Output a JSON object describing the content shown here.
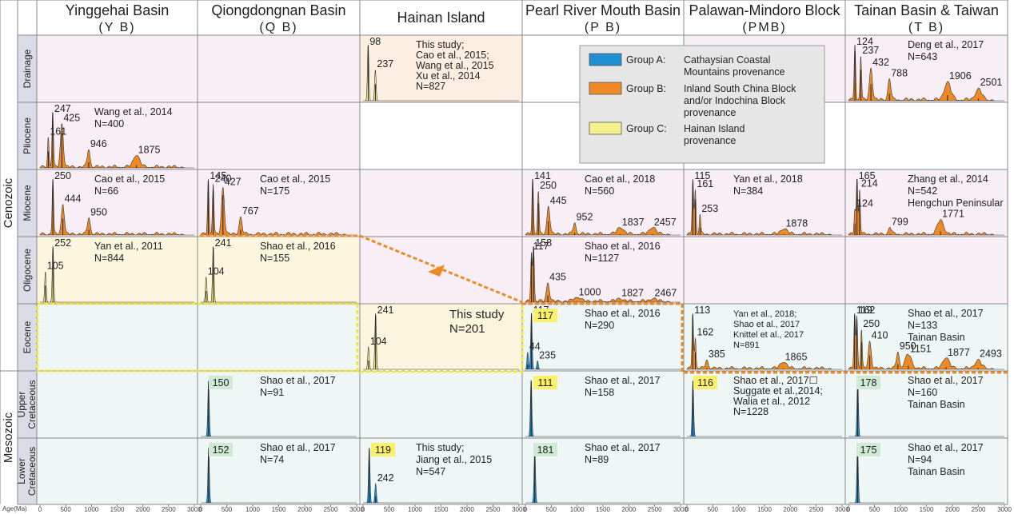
{
  "columns": [
    {
      "id": "YB",
      "title": "Yinggehai Basin",
      "sub": "(Y B)"
    },
    {
      "id": "QB",
      "title": "Qiongdongnan Basin",
      "sub": "(Q B)"
    },
    {
      "id": "HI",
      "title": "Hainan Island",
      "sub": ""
    },
    {
      "id": "PB",
      "title": "Pearl River Mouth Basin",
      "sub": "(P B)"
    },
    {
      "id": "PMB",
      "title": "Palawan-Mindoro Block",
      "sub": "(PMB)"
    },
    {
      "id": "TB",
      "title": "Tainan Basin & Taiwan",
      "sub": "(T B)"
    }
  ],
  "rows": [
    {
      "id": "drainage",
      "label": "Drainage",
      "era": "cenozoic"
    },
    {
      "id": "pliocene",
      "label": "Pliocene",
      "era": "cenozoic"
    },
    {
      "id": "miocene",
      "label": "Miocene",
      "era": "cenozoic"
    },
    {
      "id": "oligocene",
      "label": "Oligocene",
      "era": "cenozoic"
    },
    {
      "id": "eocene",
      "label": "Eocene",
      "era": "cenozoic"
    },
    {
      "id": "upper_cretaceous",
      "label": [
        "Upper",
        "Cretaceous"
      ],
      "era": "mesozoic"
    },
    {
      "id": "lower_cretaceous",
      "label": [
        "Lower",
        "Cretaceous"
      ],
      "era": "mesozoic"
    }
  ],
  "eras": [
    {
      "id": "cenozoic",
      "label": "Cenozoic"
    },
    {
      "id": "mesozoic",
      "label": "Mesozoic"
    }
  ],
  "colors": {
    "group_a": "#1f8fd2",
    "group_b": "#ee8a25",
    "group_c": "#f6f08c",
    "bg_pink": "#f8eef6",
    "bg_yellow": "#fdf6de",
    "bg_blue": "#eef6f6",
    "bg_peach": "#fcefe2",
    "highlight_yellow": "#fbf06a",
    "highlight_green": "#cfe9d4",
    "dash_orange": "#ee8a25",
    "dash_yellow": "#f2e83a"
  },
  "legend": {
    "items": [
      {
        "group": "A",
        "label": "Group A:",
        "text": [
          "Cathaysian Coastal",
          "Mountains provenance"
        ],
        "color": "#1f8fd2"
      },
      {
        "group": "B",
        "label": "Group B:",
        "text": [
          "Inland South China Block",
          "and/or Indochina Block",
          "provenance"
        ],
        "color": "#ee8a25"
      },
      {
        "group": "C",
        "label": "Group C:",
        "text": [
          "Hainan Island",
          "provenance"
        ],
        "color": "#f6f08c"
      }
    ]
  },
  "axis": {
    "label": "Age(Ma)",
    "ticks": [
      "0",
      "500",
      "1000",
      "1500",
      "2000",
      "2500",
      "3000"
    ]
  },
  "chart_data": {
    "type": "area",
    "xlabel": "Age(Ma)",
    "xlim": [
      0,
      3000
    ],
    "panels": [
      {
        "col": "HI",
        "row": "drainage",
        "group": "C",
        "peaks": [
          {
            "x": 98,
            "h": 1.0
          },
          {
            "x": 237,
            "h": 0.55
          }
        ],
        "peak_labels": [
          "98",
          "237"
        ],
        "ref": [
          "This study;",
          "Cao et al., 2015;",
          "Wang et al., 2015",
          "Xu et al., 2014",
          "N=827"
        ]
      },
      {
        "col": "TB",
        "row": "drainage",
        "group": "B",
        "peaks": [
          {
            "x": 124,
            "h": 0.95
          },
          {
            "x": 237,
            "h": 0.75
          },
          {
            "x": 432,
            "h": 0.55
          },
          {
            "x": 788,
            "h": 0.35
          },
          {
            "x": 1906,
            "h": 0.3
          },
          {
            "x": 2501,
            "h": 0.18
          }
        ],
        "peak_labels": [
          "124",
          "237",
          "432",
          "788",
          "1906",
          "2501"
        ],
        "ref": [
          "Deng et al., 2017",
          "N=643"
        ]
      },
      {
        "col": "YB",
        "row": "pliocene",
        "group": "B",
        "peaks": [
          {
            "x": 161,
            "h": 0.55
          },
          {
            "x": 247,
            "h": 1.0
          },
          {
            "x": 425,
            "h": 0.8
          },
          {
            "x": 946,
            "h": 0.32
          },
          {
            "x": 1875,
            "h": 0.22
          }
        ],
        "peak_labels": [
          "161",
          "247",
          "425",
          "946",
          "1875"
        ],
        "ref": [
          "Wang et al., 2014",
          "N=400"
        ]
      },
      {
        "col": "YB",
        "row": "miocene",
        "group": "B",
        "peaks": [
          {
            "x": 250,
            "h": 1.0
          },
          {
            "x": 444,
            "h": 0.55
          },
          {
            "x": 950,
            "h": 0.3
          }
        ],
        "peak_labels": [
          "250",
          "444",
          "950"
        ],
        "ref": [
          "Cao et al., 2015",
          "N=66"
        ]
      },
      {
        "col": "QB",
        "row": "miocene",
        "group": "B",
        "peaks": [
          {
            "x": 145,
            "h": 1.0
          },
          {
            "x": 240,
            "h": 0.9
          },
          {
            "x": 427,
            "h": 0.85
          },
          {
            "x": 767,
            "h": 0.3
          }
        ],
        "peak_labels": [
          "145",
          "240",
          "427",
          "767"
        ],
        "ref": [
          "Cao et al., 2015",
          "N=175"
        ]
      },
      {
        "col": "PB",
        "row": "miocene",
        "group": "B",
        "peaks": [
          {
            "x": 141,
            "h": 1.0
          },
          {
            "x": 250,
            "h": 0.75
          },
          {
            "x": 445,
            "h": 0.5
          },
          {
            "x": 952,
            "h": 0.2
          },
          {
            "x": 1837,
            "h": 0.12
          },
          {
            "x": 2457,
            "h": 0.12
          }
        ],
        "peak_labels": [
          "141",
          "250",
          "445",
          "952",
          "1837",
          "2457"
        ],
        "ref": [
          "Cao et al., 2018",
          "N=560"
        ]
      },
      {
        "col": "PMB",
        "row": "miocene",
        "group": "B",
        "peaks": [
          {
            "x": 115,
            "h": 1.0
          },
          {
            "x": 161,
            "h": 0.8
          },
          {
            "x": 253,
            "h": 0.35
          },
          {
            "x": 1878,
            "h": 0.1
          }
        ],
        "peak_labels": [
          "115",
          "161",
          "253",
          "1878"
        ],
        "ref": [
          "Yan et al., 2018",
          "N=384"
        ]
      },
      {
        "col": "TB",
        "row": "miocene",
        "group": "B",
        "peaks": [
          {
            "x": 124,
            "h": 0.45
          },
          {
            "x": 165,
            "h": 1.0
          },
          {
            "x": 214,
            "h": 0.8
          },
          {
            "x": 799,
            "h": 0.12
          },
          {
            "x": 1771,
            "h": 0.25
          }
        ],
        "peak_labels": [
          "124",
          "165",
          "214",
          "799",
          "1771"
        ],
        "ref": [
          "Zhang et al., 2014",
          "N=542",
          "Hengchun Peninsular"
        ]
      },
      {
        "col": "YB",
        "row": "oligocene",
        "group": "C",
        "peaks": [
          {
            "x": 105,
            "h": 0.55
          },
          {
            "x": 252,
            "h": 1.0
          }
        ],
        "peak_labels": [
          "105",
          "252"
        ],
        "ref": [
          "Yan et al., 2011",
          "N=844"
        ]
      },
      {
        "col": "QB",
        "row": "oligocene",
        "group": "C",
        "peaks": [
          {
            "x": 104,
            "h": 0.45
          },
          {
            "x": 241,
            "h": 1.0
          }
        ],
        "peak_labels": [
          "104",
          "241"
        ],
        "ref": [
          "Shao et al., 2016",
          "N=155"
        ]
      },
      {
        "col": "PB",
        "row": "oligocene",
        "group": "B",
        "peaks": [
          {
            "x": 117,
            "h": 0.9
          },
          {
            "x": 158,
            "h": 1.0
          },
          {
            "x": 435,
            "h": 0.35
          },
          {
            "x": 1000,
            "h": 0.08
          },
          {
            "x": 1827,
            "h": 0.05
          },
          {
            "x": 2467,
            "h": 0.05
          }
        ],
        "peak_labels": [
          "117",
          "158",
          "435",
          "1000",
          "1827",
          "2467"
        ],
        "ref": [
          "Shao et al., 2016",
          "N=1127"
        ]
      },
      {
        "col": "HI",
        "row": "eocene",
        "group": "C",
        "peaks": [
          {
            "x": 104,
            "h": 0.4
          },
          {
            "x": 241,
            "h": 1.0
          }
        ],
        "peak_labels": [
          "104",
          "241"
        ],
        "ref": [
          "This study",
          "N=201"
        ]
      },
      {
        "col": "PB",
        "row": "eocene",
        "group": "A",
        "peaks": [
          {
            "x": 44,
            "h": 0.3
          },
          {
            "x": 117,
            "h": 1.0
          },
          {
            "x": 235,
            "h": 0.15
          }
        ],
        "peak_labels": [
          "44",
          "117",
          "235"
        ],
        "ref": [
          "Shao et al., 2016",
          "N=290"
        ],
        "highlight": "117"
      },
      {
        "col": "PMB",
        "row": "eocene",
        "group": "B",
        "peaks": [
          {
            "x": 113,
            "h": 1.0
          },
          {
            "x": 162,
            "h": 0.55
          },
          {
            "x": 385,
            "h": 0.15
          },
          {
            "x": 1865,
            "h": 0.12
          }
        ],
        "peak_labels": [
          "113",
          "162",
          "385",
          "1865"
        ],
        "ref": [
          "Yan et al., 2018;",
          "Shao et al., 2017",
          "Knittel et al., 2017",
          "N=891"
        ]
      },
      {
        "col": "TB",
        "row": "eocene",
        "group": "B",
        "peaks": [
          {
            "x": 119,
            "h": 1.0
          },
          {
            "x": 162,
            "h": 0.95
          },
          {
            "x": 250,
            "h": 0.7
          },
          {
            "x": 410,
            "h": 0.5
          },
          {
            "x": 950,
            "h": 0.3
          },
          {
            "x": 1151,
            "h": 0.25
          },
          {
            "x": 1877,
            "h": 0.2
          },
          {
            "x": 2493,
            "h": 0.15
          }
        ],
        "peak_labels": [
          "119",
          "162",
          "250",
          "410",
          "950",
          "1151",
          "1877",
          "2493"
        ],
        "ref": [
          "Shao et al., 2017",
          "N=133",
          "Tainan Basin"
        ]
      },
      {
        "col": "QB",
        "row": "upper_cretaceous",
        "group": "A",
        "peaks": [
          {
            "x": 150,
            "h": 1.0
          }
        ],
        "peak_labels": [],
        "ref": [
          "Shao et al., 2017",
          "N=91"
        ],
        "highlight": "150"
      },
      {
        "col": "PB",
        "row": "upper_cretaceous",
        "group": "A",
        "peaks": [
          {
            "x": 111,
            "h": 1.0
          }
        ],
        "peak_labels": [],
        "ref": [
          "Shao et al., 2017",
          "N=158"
        ],
        "highlight": "111"
      },
      {
        "col": "PMB",
        "row": "upper_cretaceous",
        "group": "A",
        "peaks": [
          {
            "x": 116,
            "h": 1.0
          }
        ],
        "peak_labels": [],
        "ref": [
          "Shao et al., 2017☐",
          "Suggate et al.,2014;",
          "Walia et al., 2012",
          "N=1228"
        ],
        "highlight": "116"
      },
      {
        "col": "TB",
        "row": "upper_cretaceous",
        "group": "A",
        "peaks": [
          {
            "x": 178,
            "h": 1.0
          }
        ],
        "peak_labels": [],
        "ref": [
          "Shao et al., 2017",
          "N=160",
          "Tainan Basin"
        ],
        "highlight": "178"
      },
      {
        "col": "QB",
        "row": "lower_cretaceous",
        "group": "A",
        "peaks": [
          {
            "x": 152,
            "h": 1.0
          }
        ],
        "peak_labels": [],
        "ref": [
          "Shao et al., 2017",
          "N=74"
        ],
        "highlight": "152"
      },
      {
        "col": "HI",
        "row": "lower_cretaceous",
        "group": "A",
        "peaks": [
          {
            "x": 119,
            "h": 1.0
          },
          {
            "x": 242,
            "h": 0.35
          }
        ],
        "peak_labels": [
          "242"
        ],
        "ref": [
          "This study;",
          "Jiang et al., 2015",
          "N=547"
        ],
        "highlight": "119"
      },
      {
        "col": "PB",
        "row": "lower_cretaceous",
        "group": "A",
        "peaks": [
          {
            "x": 181,
            "h": 1.0
          }
        ],
        "peak_labels": [],
        "ref": [
          "Shao et al., 2017",
          "N=89"
        ],
        "highlight": "181"
      },
      {
        "col": "TB",
        "row": "lower_cretaceous",
        "group": "A",
        "peaks": [
          {
            "x": 175,
            "h": 1.0
          }
        ],
        "peak_labels": [],
        "ref": [
          "Shao et al., 2017",
          "N=94",
          "Tainan Basin"
        ],
        "highlight": "175"
      }
    ]
  }
}
